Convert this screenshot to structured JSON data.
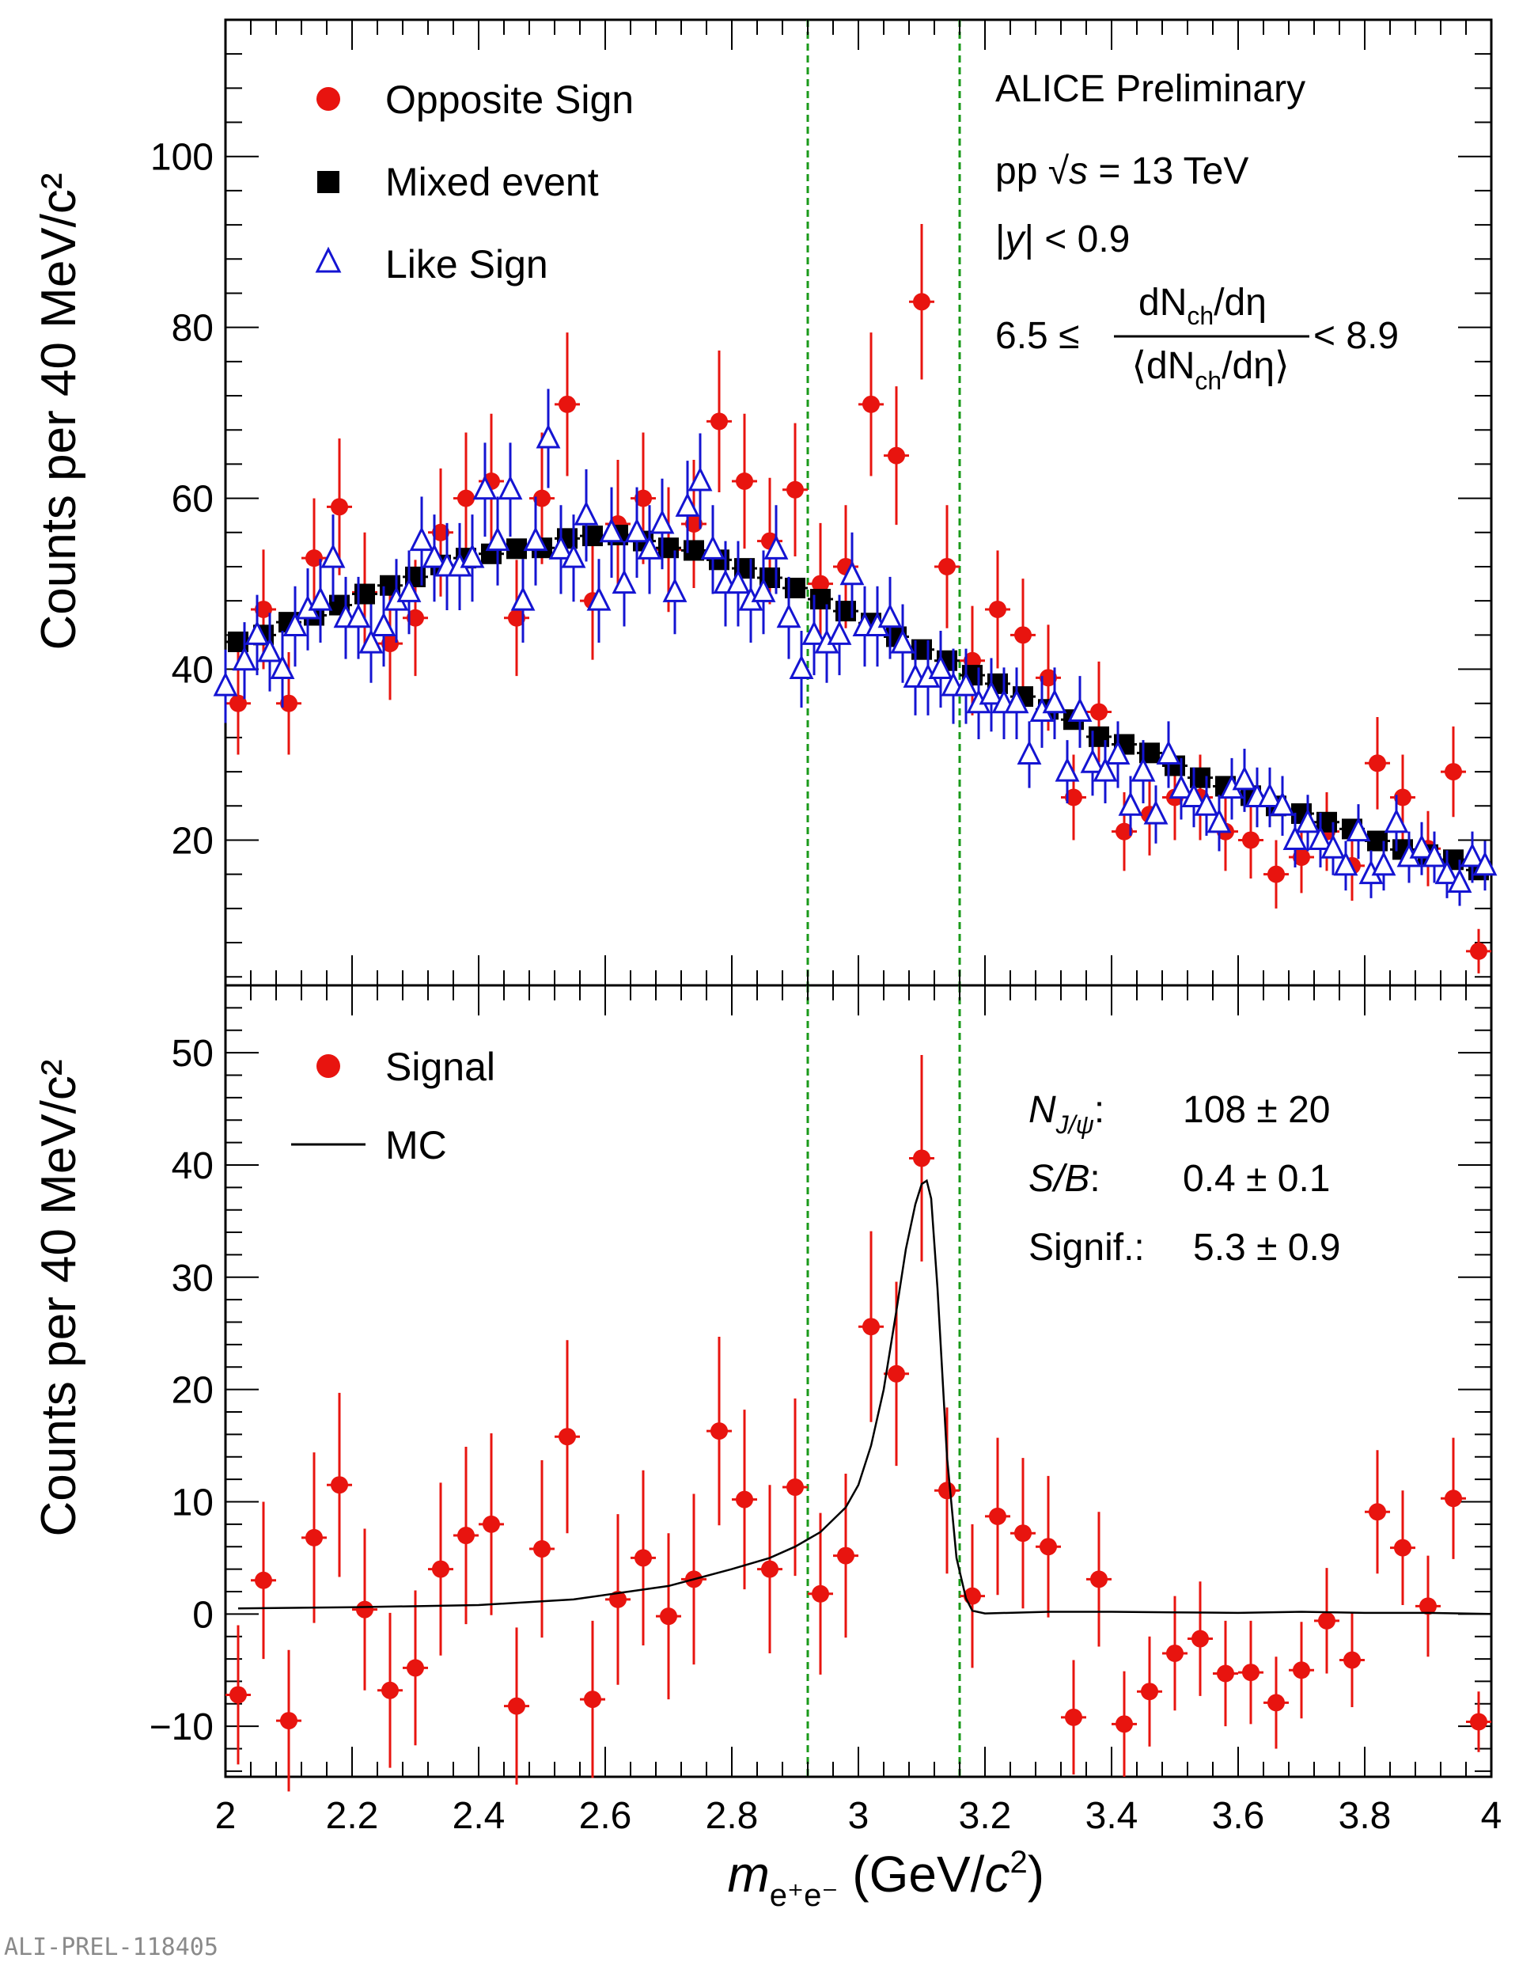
{
  "footer_id": "ALI-PREL-118405",
  "colors": {
    "os": "#e8140f",
    "mixed": "#000000",
    "like": "#1414d2",
    "mc": "#000000",
    "window": "#1a9a1a"
  },
  "icons": {
    "os": "filled-circle-icon",
    "mixed": "filled-square-icon",
    "like": "open-triangle-icon",
    "mc": "line-icon"
  },
  "chart_data": [
    {
      "type": "scatter",
      "title": "",
      "xlabel": "",
      "ylabel": "Counts per 40 MeV/c²",
      "xlim": [
        2,
        4
      ],
      "ylim": [
        3,
        116
      ],
      "yticks": [
        20,
        40,
        60,
        80,
        100
      ],
      "yticklabels": [
        "20",
        "40",
        "60",
        "80",
        "100"
      ],
      "vlines": [
        2.92,
        3.16
      ],
      "legend": {
        "position": "top-left",
        "entries": {
          "os": "Opposite Sign",
          "mixed": "Mixed event",
          "like": "Like Sign"
        }
      },
      "annotations": {
        "experiment": "ALICE Preliminary",
        "energy_prefix": "pp ",
        "energy_sqrt": "√",
        "energy_s": "s",
        "energy_suffix": " = 13 TeV",
        "rapidity_open": "|",
        "rapidity_var": "y",
        "rapidity_close": "| < 0.9",
        "mult_lower": "6.5 ≤",
        "mult_num": "dN",
        "mult_num_sub": "ch",
        "mult_num_tail": "/dη",
        "mult_den": "⟨dN",
        "mult_den_sub": "ch",
        "mult_den_tail": "/dη⟩",
        "mult_upper": "< 8.9"
      },
      "series": [
        {
          "key": "os",
          "name": "Opposite Sign",
          "x": [
            2.02,
            2.06,
            2.1,
            2.14,
            2.18,
            2.22,
            2.26,
            2.3,
            2.34,
            2.38,
            2.42,
            2.46,
            2.5,
            2.54,
            2.58,
            2.62,
            2.66,
            2.7,
            2.74,
            2.78,
            2.82,
            2.86,
            2.9,
            2.94,
            2.98,
            3.02,
            3.06,
            3.1,
            3.14,
            3.18,
            3.22,
            3.26,
            3.3,
            3.34,
            3.38,
            3.42,
            3.46,
            3.5,
            3.54,
            3.58,
            3.62,
            3.66,
            3.7,
            3.74,
            3.78,
            3.82,
            3.86,
            3.9,
            3.94,
            3.98
          ],
          "y": [
            36,
            47,
            36,
            53,
            59,
            49,
            43,
            46,
            56,
            60,
            62,
            46,
            60,
            71,
            48,
            57,
            60,
            54,
            57,
            69,
            62,
            55,
            61,
            50,
            52,
            71,
            65,
            83,
            52,
            41,
            47,
            44,
            39,
            25,
            35,
            21,
            23,
            25,
            25,
            21,
            20,
            16,
            18,
            21,
            17,
            29,
            25,
            19,
            28,
            7
          ],
          "yerr": [
            6,
            7,
            6,
            7,
            8,
            7,
            6.6,
            6.8,
            7.5,
            7.7,
            7.9,
            6.8,
            7.7,
            8.4,
            6.9,
            7.5,
            7.7,
            7.3,
            7.5,
            8.3,
            7.9,
            7.4,
            7.8,
            7.1,
            7.2,
            8.4,
            8.1,
            9.1,
            7.2,
            6.4,
            6.9,
            6.6,
            6.2,
            5,
            5.9,
            4.6,
            4.8,
            5,
            5,
            4.6,
            4.5,
            4,
            4.2,
            4.6,
            4.1,
            5.4,
            5,
            4.4,
            5.3,
            2.6
          ]
        },
        {
          "key": "mixed",
          "name": "Mixed event",
          "x": [
            2.02,
            2.06,
            2.1,
            2.14,
            2.18,
            2.22,
            2.26,
            2.3,
            2.34,
            2.38,
            2.42,
            2.46,
            2.5,
            2.54,
            2.58,
            2.62,
            2.66,
            2.7,
            2.74,
            2.78,
            2.82,
            2.86,
            2.9,
            2.94,
            2.98,
            3.02,
            3.06,
            3.1,
            3.14,
            3.18,
            3.22,
            3.26,
            3.3,
            3.34,
            3.38,
            3.42,
            3.46,
            3.5,
            3.54,
            3.58,
            3.62,
            3.66,
            3.7,
            3.74,
            3.78,
            3.82,
            3.86,
            3.9,
            3.94,
            3.98
          ],
          "y": [
            43.2,
            44,
            45.5,
            46.3,
            47.5,
            48.8,
            49.8,
            50.8,
            52.2,
            53,
            53.5,
            54.1,
            54.2,
            55.3,
            55.6,
            55.7,
            55,
            54.2,
            53.9,
            52.8,
            51.8,
            50.7,
            49.5,
            48.2,
            46.8,
            45.4,
            43.8,
            42.3,
            41,
            39.3,
            38.3,
            36.8,
            35.3,
            34.1,
            32.1,
            31.2,
            30.2,
            28.7,
            27.3,
            26.3,
            25.2,
            24,
            23.1,
            22.1,
            21.3,
            19.9,
            18.9,
            18.3,
            17.7,
            16.5
          ],
          "yerr": [
            0.7,
            0.7,
            0.7,
            0.7,
            0.7,
            0.7,
            0.7,
            0.7,
            0.7,
            0.7,
            0.7,
            0.7,
            0.7,
            0.7,
            0.7,
            0.7,
            0.7,
            0.7,
            0.7,
            0.7,
            0.7,
            0.7,
            0.7,
            0.7,
            0.7,
            0.7,
            0.7,
            0.7,
            0.7,
            0.7,
            0.7,
            0.7,
            0.7,
            0.7,
            0.7,
            0.7,
            0.7,
            0.7,
            0.7,
            0.7,
            0.7,
            0.7,
            0.7,
            0.7,
            0.7,
            0.7,
            0.7,
            0.7,
            0.7,
            0.7
          ]
        },
        {
          "key": "like",
          "name": "Like Sign",
          "x": [
            2.0,
            2.03,
            2.05,
            2.07,
            2.09,
            2.11,
            2.13,
            2.15,
            2.17,
            2.19,
            2.21,
            2.23,
            2.25,
            2.27,
            2.29,
            2.31,
            2.33,
            2.35,
            2.37,
            2.39,
            2.41,
            2.43,
            2.45,
            2.47,
            2.49,
            2.51,
            2.53,
            2.55,
            2.57,
            2.59,
            2.61,
            2.63,
            2.65,
            2.67,
            2.69,
            2.71,
            2.73,
            2.75,
            2.77,
            2.79,
            2.81,
            2.83,
            2.85,
            2.87,
            2.89,
            2.91,
            2.93,
            2.95,
            2.97,
            2.99,
            3.01,
            3.03,
            3.05,
            3.07,
            3.09,
            3.11,
            3.13,
            3.15,
            3.17,
            3.19,
            3.21,
            3.23,
            3.25,
            3.27,
            3.29,
            3.31,
            3.33,
            3.35,
            3.37,
            3.39,
            3.41,
            3.43,
            3.45,
            3.47,
            3.49,
            3.51,
            3.53,
            3.55,
            3.57,
            3.59,
            3.61,
            3.63,
            3.65,
            3.67,
            3.69,
            3.71,
            3.73,
            3.75,
            3.77,
            3.79,
            3.81,
            3.83,
            3.85,
            3.87,
            3.89,
            3.91,
            3.93,
            3.95,
            3.97,
            3.99
          ],
          "y": [
            38,
            41,
            44,
            42,
            40,
            45,
            47,
            48,
            53,
            46,
            46,
            43,
            45,
            48,
            49,
            55,
            53,
            52,
            52,
            53,
            61,
            55,
            61,
            48,
            55,
            67,
            54,
            53,
            58,
            48,
            56,
            50,
            56,
            54,
            57,
            49,
            59,
            62,
            54,
            50,
            50,
            48,
            49,
            54,
            46,
            40,
            44,
            43,
            44,
            51,
            45,
            45,
            46,
            43,
            39,
            39,
            40,
            38,
            38,
            36,
            37,
            36,
            36,
            30,
            35,
            36,
            28,
            35,
            29,
            28,
            30,
            24,
            28,
            23,
            30,
            26,
            25,
            24,
            22,
            26,
            27,
            25,
            25,
            24,
            20,
            22,
            20,
            19,
            17,
            21,
            16,
            17,
            22,
            18,
            19,
            18,
            16,
            15,
            18,
            17
          ],
          "yerr": [
            4.3,
            4.5,
            4.7,
            4.6,
            4.5,
            4.7,
            4.8,
            4.9,
            5.1,
            4.8,
            4.8,
            4.6,
            4.7,
            4.9,
            4.9,
            5.2,
            5.1,
            5.1,
            5.1,
            5.1,
            5.5,
            5.2,
            5.5,
            4.9,
            5.2,
            5.8,
            5.2,
            5.1,
            5.4,
            4.9,
            5.3,
            5,
            5.3,
            5.2,
            5.3,
            4.9,
            5.4,
            5.6,
            5.2,
            5,
            5,
            4.9,
            4.9,
            5.2,
            4.8,
            4.5,
            4.7,
            4.6,
            4.7,
            5,
            4.7,
            4.7,
            4.8,
            4.6,
            4.4,
            4.4,
            4.5,
            4.4,
            4.4,
            4.2,
            4.3,
            4.2,
            4.2,
            3.9,
            4.2,
            4.2,
            3.7,
            4.2,
            3.8,
            3.7,
            3.9,
            3.5,
            3.7,
            3.4,
            3.9,
            3.6,
            3.5,
            3.5,
            3.3,
            3.6,
            3.7,
            3.5,
            3.5,
            3.5,
            3.2,
            3.3,
            3.2,
            3.1,
            2.9,
            3.2,
            2.8,
            2.9,
            3.3,
            3,
            3.1,
            3,
            2.8,
            2.7,
            3,
            2.9
          ]
        }
      ]
    },
    {
      "type": "scatter",
      "title": "",
      "xlabel_var": "m",
      "xlabel_sub": "e⁺e⁻",
      "xlabel_unit": " (GeV/",
      "xlabel_c": "c",
      "xlabel_pow": "2",
      "xlabel_close": ")",
      "ylabel": "Counts per 40 MeV/c²",
      "xlim": [
        2,
        4
      ],
      "ylim": [
        -14.5,
        56
      ],
      "xticks": [
        2,
        2.2,
        2.4,
        2.6,
        2.8,
        3,
        3.2,
        3.4,
        3.6,
        3.8,
        4
      ],
      "xticklabels": [
        "2",
        "2.2",
        "2.4",
        "2.6",
        "2.8",
        "3",
        "3.2",
        "3.4",
        "3.6",
        "3.8",
        "4"
      ],
      "yticks": [
        -10,
        0,
        10,
        20,
        30,
        40,
        50
      ],
      "yticklabels": [
        "−10",
        "0",
        "10",
        "20",
        "30",
        "40",
        "50"
      ],
      "vlines": [
        2.92,
        3.16
      ],
      "legend": {
        "position": "top-left",
        "entries": {
          "signal": "Signal",
          "mc": "MC"
        }
      },
      "annotations": {
        "n_label": "N",
        "n_sub": "J/ψ",
        "n_colon": ":",
        "n_value": "108 ± 20",
        "sb_label": "S/B",
        "sb_colon": ":",
        "sb_value": "0.4 ± 0.1",
        "signif_label": "Signif.:",
        "signif_value": "5.3 ± 0.9"
      },
      "series": [
        {
          "key": "signal",
          "name": "Signal",
          "x": [
            2.02,
            2.06,
            2.1,
            2.14,
            2.18,
            2.22,
            2.26,
            2.3,
            2.34,
            2.38,
            2.42,
            2.46,
            2.5,
            2.54,
            2.58,
            2.62,
            2.66,
            2.7,
            2.74,
            2.78,
            2.82,
            2.86,
            2.9,
            2.94,
            2.98,
            3.02,
            3.06,
            3.1,
            3.14,
            3.18,
            3.22,
            3.26,
            3.3,
            3.34,
            3.38,
            3.42,
            3.46,
            3.5,
            3.54,
            3.58,
            3.62,
            3.66,
            3.7,
            3.74,
            3.78,
            3.82,
            3.86,
            3.9,
            3.94,
            3.98
          ],
          "y": [
            -7.2,
            3,
            -9.5,
            6.8,
            11.5,
            0.4,
            -6.8,
            -4.8,
            4,
            7,
            8,
            -8.2,
            5.8,
            15.8,
            -7.6,
            1.3,
            5,
            -0.2,
            3.1,
            16.3,
            10.2,
            4,
            11.3,
            1.8,
            5.2,
            25.6,
            21.4,
            40.6,
            11,
            1.6,
            8.7,
            7.2,
            6,
            -9.2,
            3.1,
            -9.8,
            -6.9,
            -3.5,
            -2.2,
            -5.3,
            -5.2,
            -7.9,
            -5,
            -0.6,
            -4.1,
            9.1,
            5.9,
            0.7,
            10.3,
            -9.6
          ],
          "yerr": [
            6.2,
            7,
            6.3,
            7.6,
            8.2,
            7.2,
            6.9,
            6.9,
            7.7,
            7.9,
            8.1,
            7,
            7.9,
            8.6,
            7,
            7.6,
            7.8,
            7.4,
            7.6,
            8.4,
            8,
            7.5,
            7.9,
            7.2,
            7.3,
            8.5,
            8.2,
            9.2,
            7.4,
            6.4,
            7,
            6.7,
            6.3,
            5.1,
            6,
            4.7,
            4.9,
            5.1,
            5.1,
            4.7,
            4.6,
            4.1,
            4.3,
            4.7,
            4.2,
            5.5,
            5.1,
            4.5,
            5.4,
            2.7
          ]
        },
        {
          "key": "mc",
          "name": "MC",
          "x": [
            2.02,
            2.2,
            2.4,
            2.55,
            2.7,
            2.8,
            2.86,
            2.9,
            2.94,
            2.98,
            3.0,
            3.02,
            3.04,
            3.06,
            3.075,
            3.09,
            3.1,
            3.108,
            3.115,
            3.125,
            3.14,
            3.155,
            3.17,
            3.18,
            3.2,
            3.3,
            3.4,
            3.5,
            3.6,
            3.7,
            3.8,
            3.9,
            4.0
          ],
          "y": [
            0.5,
            0.6,
            0.8,
            1.3,
            2.5,
            4.0,
            5.0,
            6.0,
            7.3,
            9.5,
            11.5,
            15.0,
            20.0,
            27.0,
            32.5,
            36.5,
            38.3,
            38.6,
            37.0,
            29.0,
            14.0,
            5.0,
            1.4,
            0.3,
            0.05,
            0.2,
            0.2,
            0.15,
            0.1,
            0.2,
            0.1,
            0.1,
            0.0
          ]
        }
      ]
    }
  ]
}
